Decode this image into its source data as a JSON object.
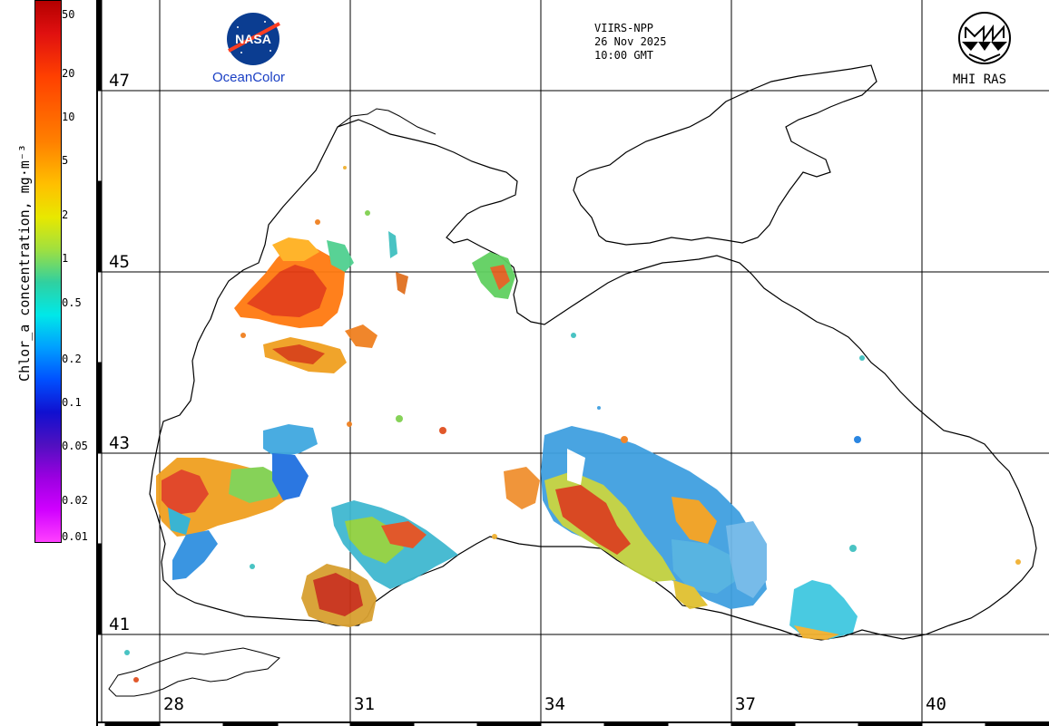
{
  "header": {
    "satellite": "VIIRS-NPP",
    "date": "26 Nov 2025",
    "time": "10:00 GMT"
  },
  "logos": {
    "nasa_text": "NASA",
    "oceancolor_label": "OceanColor",
    "mhi_label": "MHI RAS"
  },
  "colorbar": {
    "title": "Chlor_a concentration, mg·m⁻³",
    "ticks": [
      "50",
      "20",
      "10",
      "5",
      "2",
      "1",
      "0.5",
      "0.2",
      "0.1",
      "0.05",
      "0.02",
      "0.01"
    ],
    "scale": "log",
    "range": [
      0.01,
      50
    ]
  },
  "grid": {
    "latitudes": [
      "47",
      "45",
      "43",
      "41"
    ],
    "longitudes": [
      "28",
      "31",
      "34",
      "37",
      "40"
    ]
  },
  "colors": {
    "land_coast": "#000000",
    "background": "#ffffff",
    "low_chl": "#00a0ff",
    "high_chl": "#e01010"
  }
}
